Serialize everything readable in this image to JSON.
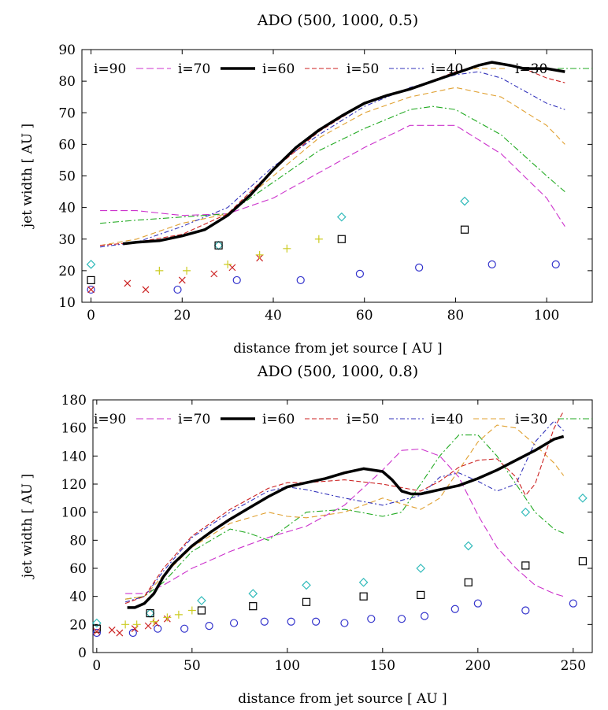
{
  "chart_data": [
    {
      "type": "line",
      "title": "ADO (500, 1000, 0.5)",
      "xlabel": "distance from jet source [ AU ]",
      "ylabel": "jet width [ AU ]",
      "xlim": [
        -2,
        110
      ],
      "ylim": [
        10,
        90
      ],
      "xticks": [
        0,
        20,
        40,
        60,
        80,
        100
      ],
      "yticks": [
        10,
        20,
        30,
        40,
        50,
        60,
        70,
        80,
        90
      ],
      "legend": [
        "i=90",
        "i=70",
        "i=60",
        "i=50",
        "i=40",
        "i=30"
      ],
      "colors": {
        "i70": "#000000",
        "i60": "#cc2222",
        "i50": "#3333bb",
        "i40": "#e0a030",
        "i30": "#22aa22",
        "i90": "#cc33cc"
      },
      "lines": [
        {
          "name": "i=90",
          "x": [
            2,
            10,
            20,
            30,
            40,
            50,
            60,
            70,
            80,
            90,
            100,
            104
          ],
          "y": [
            39,
            39,
            37.5,
            38,
            43,
            51,
            59,
            66,
            66,
            57,
            43,
            34
          ]
        },
        {
          "name": "i=30",
          "x": [
            2,
            10,
            20,
            30,
            40,
            50,
            60,
            70,
            75,
            80,
            90,
            100,
            104
          ],
          "y": [
            35,
            36,
            37,
            38,
            48,
            58,
            65,
            71,
            72,
            71,
            63,
            50,
            45
          ]
        },
        {
          "name": "i=40",
          "x": [
            2,
            10,
            20,
            30,
            40,
            50,
            60,
            70,
            80,
            90,
            100,
            104
          ],
          "y": [
            28,
            30,
            35,
            38,
            50,
            62,
            70,
            75,
            78,
            75,
            66,
            60
          ]
        },
        {
          "name": "i=50",
          "x": [
            2,
            10,
            20,
            30,
            40,
            50,
            60,
            70,
            80,
            85,
            90,
            100,
            104
          ],
          "y": [
            27.5,
            29,
            34,
            40,
            53,
            63,
            72,
            78,
            82,
            83,
            81,
            73,
            71
          ]
        },
        {
          "name": "i=60",
          "x": [
            2,
            10,
            20,
            30,
            40,
            50,
            60,
            70,
            80,
            88,
            95,
            100,
            104
          ],
          "y": [
            28,
            29,
            31.5,
            38,
            52,
            64,
            73,
            77.5,
            83,
            86,
            84,
            81,
            79.5
          ]
        },
        {
          "name": "i=70",
          "x": [
            7,
            10,
            15,
            20,
            25,
            30,
            35,
            40,
            45,
            50,
            55,
            60,
            65,
            70,
            75,
            80,
            85,
            88,
            92,
            95,
            100,
            104
          ],
          "y": [
            28.5,
            29,
            29.5,
            31,
            33,
            37.5,
            44,
            52,
            59,
            64.5,
            69,
            73,
            75.5,
            77.5,
            80,
            82.5,
            85,
            86,
            85,
            84,
            84,
            83
          ]
        }
      ],
      "markers": [
        {
          "name": "cyan-diamonds",
          "shape": "diamond",
          "color": "#33bbbb",
          "x": [
            0,
            28,
            55,
            82
          ],
          "y": [
            22,
            28,
            37,
            42
          ]
        },
        {
          "name": "black-squares",
          "shape": "square",
          "color": "#000000",
          "x": [
            0,
            28,
            55,
            82
          ],
          "y": [
            17,
            28,
            30,
            33
          ]
        },
        {
          "name": "blue-circles",
          "shape": "circle",
          "color": "#3333cc",
          "x": [
            0,
            19,
            32,
            46,
            59,
            72,
            88,
            102
          ],
          "y": [
            14,
            14,
            17,
            17,
            19,
            21,
            22,
            22
          ]
        },
        {
          "name": "red-crosses",
          "shape": "cross",
          "color": "#cc2222",
          "x": [
            0,
            8,
            12,
            20,
            27,
            31,
            37
          ],
          "y": [
            14,
            16,
            14,
            17,
            19,
            21,
            24
          ]
        },
        {
          "name": "yellow-pluses",
          "shape": "plus",
          "color": "#cccc22",
          "x": [
            15,
            21,
            30,
            37,
            43,
            50
          ],
          "y": [
            20,
            20,
            22,
            25,
            27,
            30
          ]
        }
      ]
    },
    {
      "type": "line",
      "title": "ADO (500, 1000, 0.8)",
      "xlabel": "distance from jet source [ AU ]",
      "ylabel": "jet width [ AU ]",
      "xlim": [
        -2,
        260
      ],
      "ylim": [
        0,
        180
      ],
      "xticks": [
        0,
        50,
        100,
        150,
        200,
        250
      ],
      "yticks": [
        0,
        20,
        40,
        60,
        80,
        100,
        120,
        140,
        160,
        180
      ],
      "legend": [
        "i=90",
        "i=70",
        "i=60",
        "i=50",
        "i=40",
        "i=30"
      ],
      "colors": {
        "i70": "#000000",
        "i60": "#cc2222",
        "i50": "#3333bb",
        "i40": "#e0a030",
        "i30": "#22aa22",
        "i90": "#cc33cc"
      },
      "lines": [
        {
          "name": "i=90",
          "x": [
            15,
            25,
            35,
            50,
            70,
            90,
            110,
            130,
            150,
            160,
            170,
            180,
            190,
            200,
            210,
            220,
            230,
            240,
            245
          ],
          "y": [
            42,
            42,
            48,
            60,
            72,
            82,
            90,
            105,
            130,
            144,
            145,
            140,
            125,
            98,
            75,
            60,
            48,
            42,
            40
          ]
        },
        {
          "name": "i=30",
          "x": [
            15,
            25,
            35,
            50,
            70,
            80,
            90,
            110,
            130,
            150,
            160,
            170,
            180,
            190,
            200,
            210,
            220,
            230,
            240,
            245
          ],
          "y": [
            38,
            40,
            50,
            72,
            88,
            85,
            80,
            100,
            102,
            97,
            100,
            120,
            140,
            155,
            155,
            140,
            120,
            100,
            88,
            85
          ]
        },
        {
          "name": "i=40",
          "x": [
            15,
            25,
            35,
            50,
            70,
            90,
            100,
            110,
            130,
            150,
            170,
            180,
            190,
            200,
            210,
            220,
            230,
            240,
            245
          ],
          "y": [
            38,
            40,
            55,
            75,
            92,
            100,
            97,
            96,
            100,
            110,
            102,
            110,
            130,
            150,
            162,
            160,
            148,
            135,
            126
          ]
        },
        {
          "name": "i=50",
          "x": [
            15,
            25,
            35,
            50,
            70,
            90,
            100,
            110,
            130,
            150,
            170,
            180,
            190,
            200,
            210,
            220,
            230,
            240,
            245
          ],
          "y": [
            36,
            40,
            58,
            82,
            100,
            115,
            118,
            116,
            110,
            105,
            112,
            125,
            128,
            122,
            115,
            120,
            150,
            165,
            158
          ]
        },
        {
          "name": "i=60",
          "x": [
            15,
            25,
            35,
            50,
            70,
            90,
            100,
            110,
            130,
            150,
            170,
            180,
            190,
            200,
            210,
            220,
            225,
            230,
            240,
            245
          ],
          "y": [
            35,
            40,
            60,
            83,
            102,
            117,
            121,
            121,
            123,
            120,
            115,
            122,
            132,
            137,
            138,
            125,
            112,
            120,
            160,
            172
          ]
        },
        {
          "name": "i=70",
          "x": [
            16,
            20,
            25,
            30,
            35,
            40,
            50,
            60,
            70,
            80,
            90,
            100,
            110,
            120,
            130,
            140,
            150,
            155,
            160,
            165,
            170,
            180,
            190,
            200,
            210,
            220,
            230,
            240,
            245
          ],
          "y": [
            32,
            32,
            35,
            42,
            54,
            63,
            76,
            86,
            95,
            103,
            111,
            118,
            121,
            124,
            128,
            131,
            129,
            123,
            115,
            113,
            113,
            116,
            119,
            124,
            130,
            137,
            144,
            152,
            154
          ]
        }
      ],
      "markers": [
        {
          "name": "cyan-diamonds",
          "shape": "diamond",
          "color": "#33bbbb",
          "x": [
            0,
            28,
            55,
            82,
            110,
            140,
            170,
            195,
            225,
            255
          ],
          "y": [
            21,
            28,
            37,
            42,
            48,
            50,
            60,
            76,
            100,
            110
          ]
        },
        {
          "name": "black-squares",
          "shape": "square",
          "color": "#000000",
          "x": [
            0,
            28,
            55,
            82,
            110,
            140,
            170,
            195,
            225,
            255
          ],
          "y": [
            17,
            28,
            30,
            33,
            36,
            40,
            41,
            50,
            62,
            65
          ]
        },
        {
          "name": "blue-circles",
          "shape": "circle",
          "color": "#3333cc",
          "x": [
            0,
            19,
            32,
            46,
            59,
            72,
            88,
            102,
            115,
            130,
            144,
            160,
            172,
            188,
            200,
            225,
            250
          ],
          "y": [
            14,
            14,
            17,
            17,
            19,
            21,
            22,
            22,
            22,
            21,
            24,
            24,
            26,
            31,
            35,
            30,
            35
          ]
        },
        {
          "name": "red-crosses",
          "shape": "cross",
          "color": "#cc2222",
          "x": [
            0,
            8,
            12,
            20,
            27,
            31,
            37
          ],
          "y": [
            15,
            16,
            14,
            17,
            19,
            21,
            24
          ]
        },
        {
          "name": "yellow-pluses",
          "shape": "plus",
          "color": "#cccc22",
          "x": [
            15,
            21,
            30,
            37,
            43,
            50
          ],
          "y": [
            20,
            20,
            22,
            25,
            27,
            30
          ]
        }
      ]
    }
  ]
}
